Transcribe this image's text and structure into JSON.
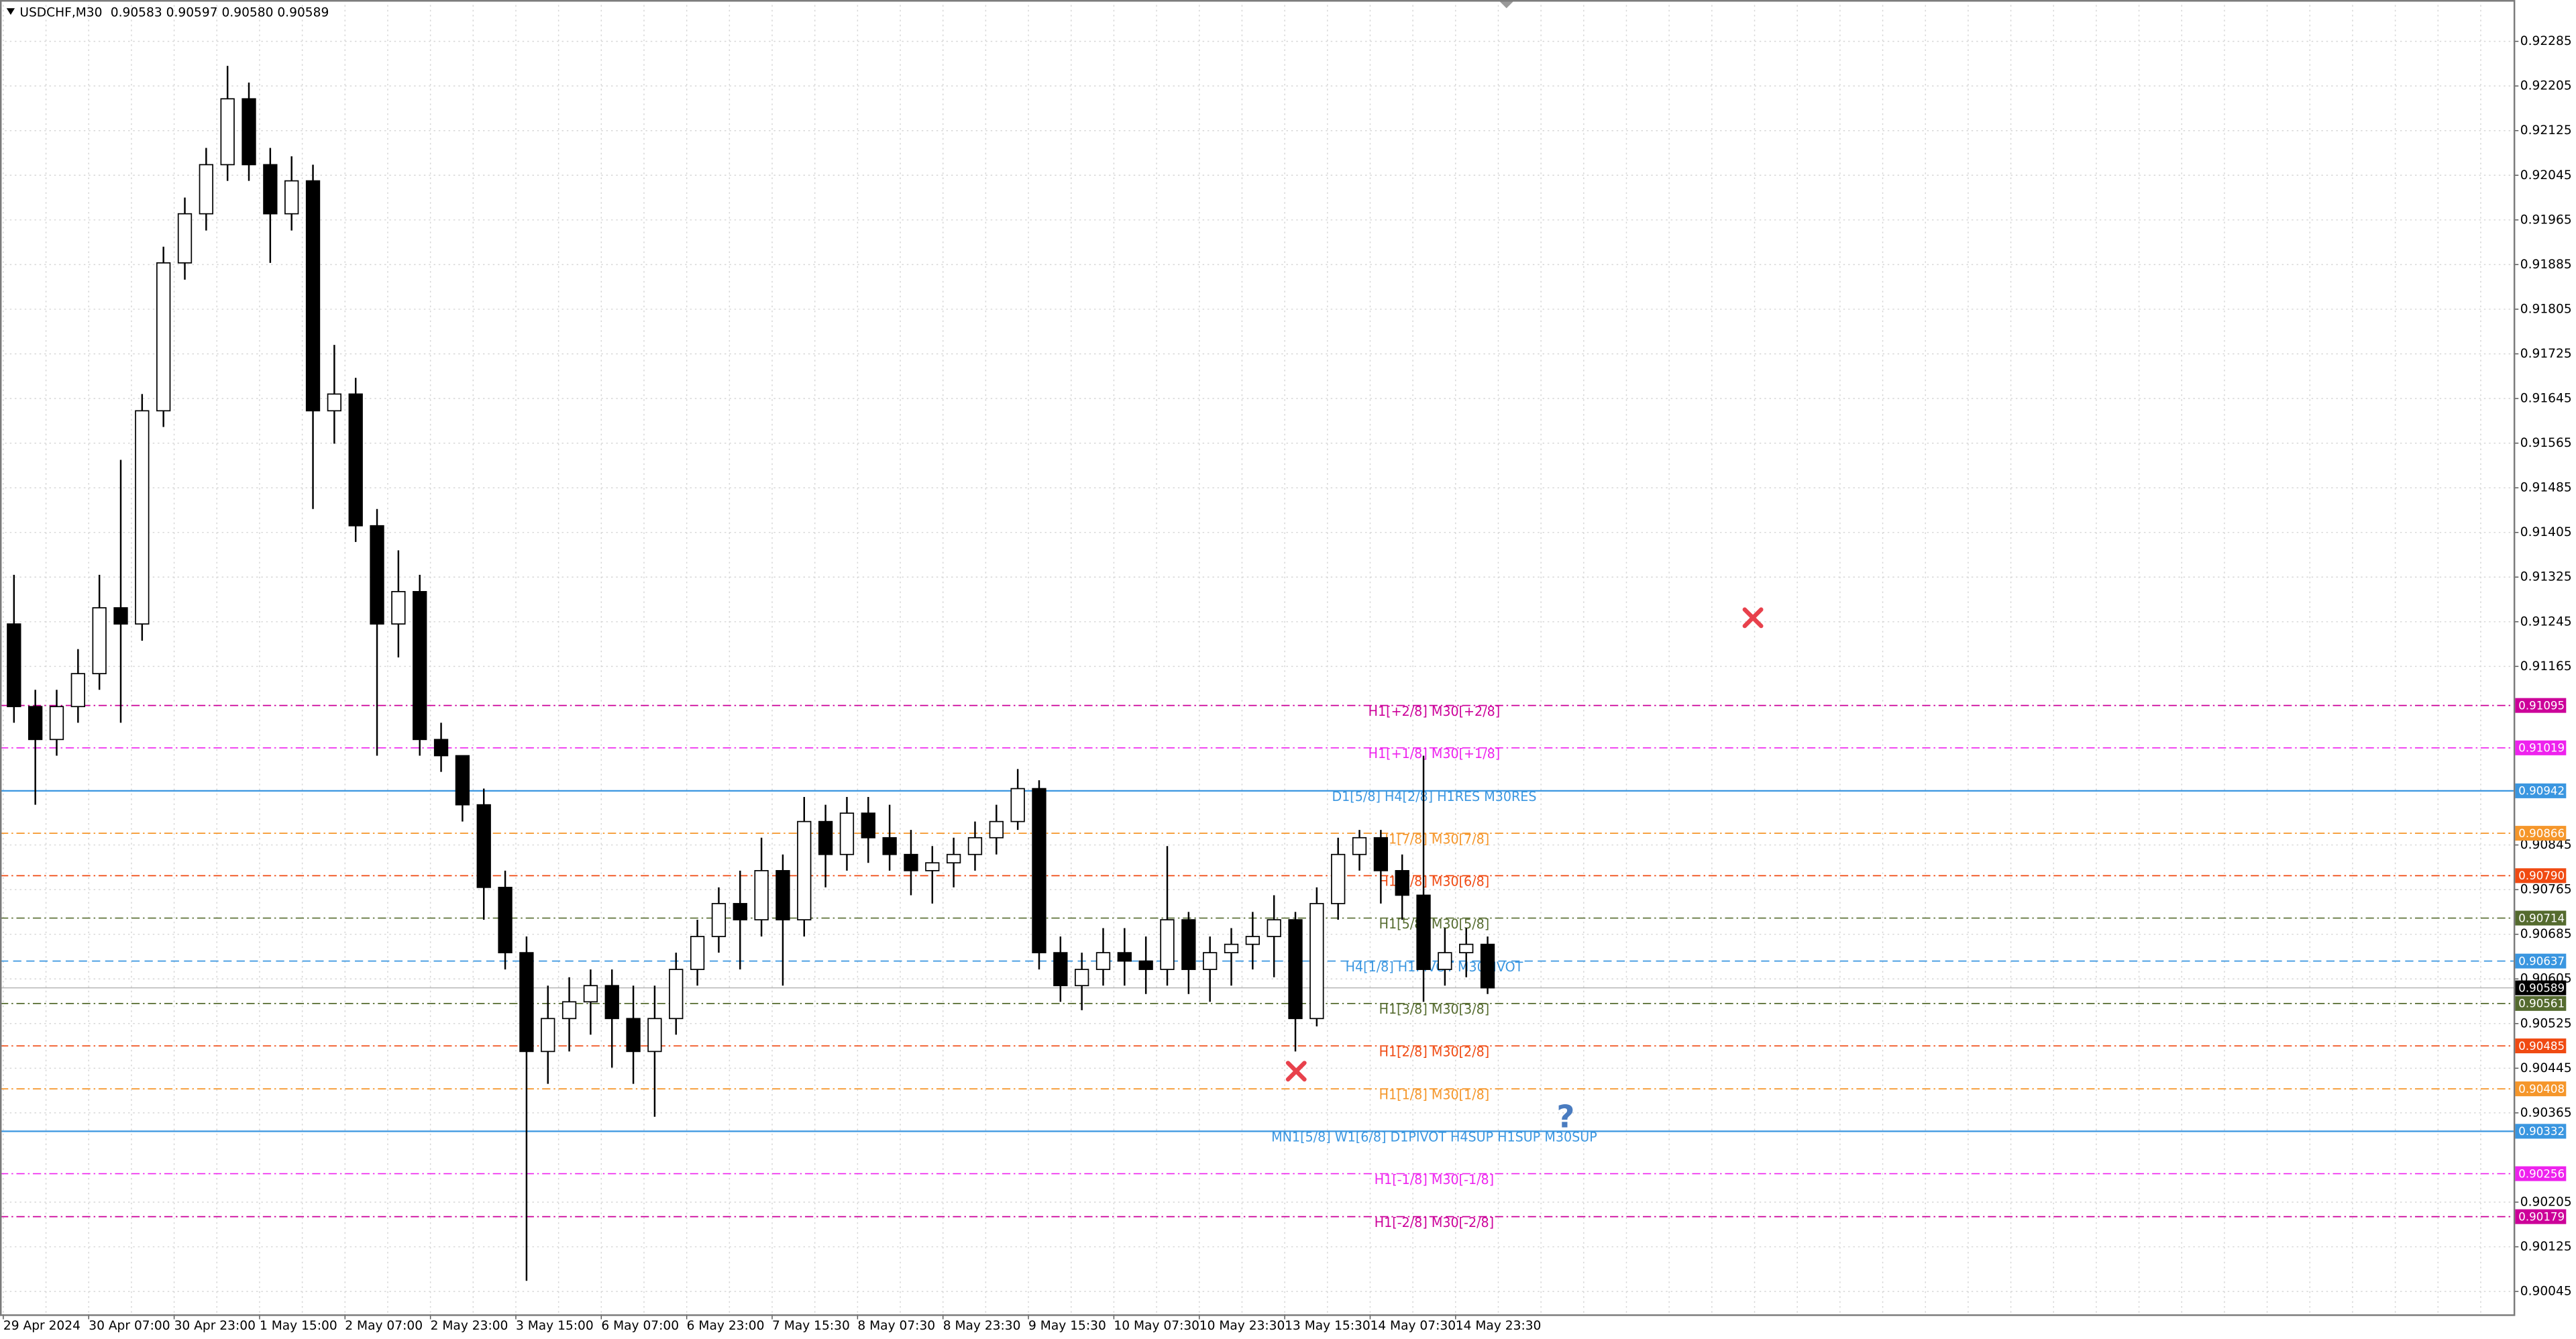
{
  "chart_data": {
    "type": "candlestick",
    "title": "USDCHF,M30",
    "quote": "0.90583 0.90597 0.90580 0.90589",
    "x_labels": [
      "29 Apr 2024",
      "30 Apr 07:00",
      "30 Apr 23:00",
      "1 May 15:00",
      "2 May 07:00",
      "2 May 23:00",
      "3 May 15:00",
      "6 May 07:00",
      "6 May 23:00",
      "7 May 15:30",
      "8 May 07:30",
      "8 May 23:30",
      "9 May 15:30",
      "10 May 07:30",
      "10 May 23:30",
      "13 May 15:30",
      "14 May 07:30",
      "14 May 23:30"
    ],
    "open": [
      0.91241,
      0.91093,
      0.91034,
      0.91093,
      0.91152,
      0.9127,
      0.91241,
      0.91623,
      0.91888,
      0.91976,
      0.92064,
      0.92182,
      0.92064,
      0.91976,
      0.92035,
      0.91623,
      0.91653,
      0.91417,
      0.91241,
      0.91299,
      0.91034,
      0.91005,
      0.90917,
      0.90769,
      0.90652,
      0.90475,
      0.90534,
      0.90564,
      0.90593,
      0.90534,
      0.90475,
      0.90534,
      0.90622,
      0.90681,
      0.9074,
      0.90711,
      0.90799,
      0.90711,
      0.90887,
      0.90828,
      0.90902,
      0.90858,
      0.90828,
      0.90799,
      0.90813,
      0.90828,
      0.90858,
      0.90887,
      0.90946,
      0.90652,
      0.90593,
      0.90622,
      0.90652,
      0.90637,
      0.90622,
      0.90711,
      0.90622,
      0.90652,
      0.90667,
      0.90681,
      0.90711,
      0.90534,
      0.9074,
      0.90828,
      0.90858,
      0.90799,
      0.90755,
      0.90622,
      0.90652,
      0.90667
    ],
    "high": [
      0.91329,
      0.91123,
      0.91123,
      0.91196,
      0.91329,
      0.91535,
      0.91653,
      0.91917,
      0.92005,
      0.92094,
      0.92241,
      0.92211,
      0.92094,
      0.92079,
      0.92064,
      0.91741,
      0.91682,
      0.91447,
      0.91373,
      0.91329,
      0.91064,
      0.91005,
      0.90946,
      0.90799,
      0.90681,
      0.90593,
      0.90608,
      0.90622,
      0.90622,
      0.90593,
      0.90593,
      0.90652,
      0.90711,
      0.90769,
      0.90799,
      0.90858,
      0.90828,
      0.90931,
      0.90917,
      0.90931,
      0.90931,
      0.90917,
      0.90872,
      0.90843,
      0.90858,
      0.90887,
      0.90917,
      0.90981,
      0.90961,
      0.90681,
      0.90652,
      0.90696,
      0.90696,
      0.90681,
      0.90843,
      0.90725,
      0.90681,
      0.90696,
      0.90725,
      0.90755,
      0.90725,
      0.90769,
      0.90858,
      0.90872,
      0.90872,
      0.90828,
      0.91005,
      0.90696,
      0.90696,
      0.90681
    ],
    "low": [
      0.91064,
      0.90917,
      0.91005,
      0.91064,
      0.91123,
      0.91064,
      0.91211,
      0.91594,
      0.91858,
      0.91946,
      0.92035,
      0.92035,
      0.91888,
      0.91946,
      0.91447,
      0.91564,
      0.91388,
      0.91005,
      0.91181,
      0.91005,
      0.90976,
      0.90887,
      0.90711,
      0.90622,
      0.90064,
      0.90417,
      0.90475,
      0.90505,
      0.90446,
      0.90417,
      0.90358,
      0.90505,
      0.90593,
      0.90652,
      0.90622,
      0.90681,
      0.90593,
      0.90681,
      0.90769,
      0.90799,
      0.90813,
      0.90799,
      0.90755,
      0.9074,
      0.90769,
      0.90799,
      0.90828,
      0.90872,
      0.90622,
      0.90564,
      0.90549,
      0.90593,
      0.90593,
      0.90578,
      0.90593,
      0.90578,
      0.90564,
      0.90593,
      0.90622,
      0.90608,
      0.90475,
      0.9052,
      0.90711,
      0.90799,
      0.9074,
      0.90711,
      0.90564,
      0.90593,
      0.90608,
      0.90578
    ],
    "close": [
      0.91093,
      0.91034,
      0.91093,
      0.91152,
      0.9127,
      0.91241,
      0.91623,
      0.91888,
      0.91976,
      0.92064,
      0.92182,
      0.92064,
      0.91976,
      0.92035,
      0.91623,
      0.91653,
      0.91417,
      0.91241,
      0.91299,
      0.91034,
      0.91005,
      0.90917,
      0.90769,
      0.90652,
      0.90475,
      0.90534,
      0.90564,
      0.90593,
      0.90534,
      0.90475,
      0.90534,
      0.90622,
      0.90681,
      0.9074,
      0.90711,
      0.90799,
      0.90711,
      0.90887,
      0.90828,
      0.90902,
      0.90858,
      0.90828,
      0.90799,
      0.90813,
      0.90828,
      0.90858,
      0.90887,
      0.90946,
      0.90652,
      0.90593,
      0.90622,
      0.90652,
      0.90637,
      0.90622,
      0.90711,
      0.90622,
      0.90652,
      0.90667,
      0.90681,
      0.90711,
      0.90534,
      0.9074,
      0.90828,
      0.90858,
      0.90799,
      0.90755,
      0.90622,
      0.90652,
      0.90667,
      0.90589
    ],
    "ylim": [
      0.90004,
      0.92359
    ],
    "yticks": [
      0.92285,
      0.92205,
      0.92125,
      0.92045,
      0.91965,
      0.91885,
      0.91805,
      0.91725,
      0.91645,
      0.91565,
      0.91485,
      0.91405,
      0.91325,
      0.91245,
      0.91165,
      0.90845,
      0.90765,
      0.90685,
      0.90605,
      0.90525,
      0.90445,
      0.90365,
      0.90205,
      0.90125,
      0.90045
    ],
    "grid": true,
    "last_price": 0.90589,
    "levels": [
      {
        "name": "H1[+2/8] M30[+2/8]",
        "price": 0.91095,
        "color": "#cc0099",
        "style": "dashdot"
      },
      {
        "name": "H1[+1/8] M30[+1/8]",
        "price": 0.91019,
        "color": "#ee22ee",
        "style": "dashdot"
      },
      {
        "name": "D1[5/8] H4[2/8] H1RES M30RES",
        "price": 0.90942,
        "color": "#3a96e0",
        "style": "solid"
      },
      {
        "name": "H1[7/8] M30[7/8]",
        "price": 0.90866,
        "color": "#f5962a",
        "style": "dashdot"
      },
      {
        "name": "H1[6/8] M30[6/8]",
        "price": 0.9079,
        "price_label": "0.90790",
        "color": "#f04a12",
        "style": "dashdot"
      },
      {
        "name": "H1[5/8] M30[5/8]",
        "price": 0.90714,
        "color": "#556b2f",
        "style": "dashdot"
      },
      {
        "name": "H4[1/8] H1PIVOT M30PIVOT",
        "price": 0.90637,
        "color": "#3a96e0",
        "style": "dashed"
      },
      {
        "name": "H1[3/8] M30[3/8]",
        "price": 0.90561,
        "color": "#556b2f",
        "style": "dashdot"
      },
      {
        "name": "H1[2/8] M30[2/8]",
        "price": 0.90485,
        "color": "#f04a12",
        "style": "dashdot"
      },
      {
        "name": "H1[1/8] M30[1/8]",
        "price": 0.90408,
        "color": "#f5962a",
        "style": "dashdot"
      },
      {
        "name": "MN1[5/8] W1[6/8] D1PIVOT H4SUP H1SUP M30SUP",
        "price": 0.90332,
        "color": "#3a96e0",
        "style": "solid"
      },
      {
        "name": "H1[-1/8] M30[-1/8]",
        "price": 0.90256,
        "color": "#ee22ee",
        "style": "dashdot"
      },
      {
        "name": "H1[-2/8] M30[-2/8]",
        "price": 0.90179,
        "color": "#cc0099",
        "style": "dashdot"
      }
    ]
  }
}
